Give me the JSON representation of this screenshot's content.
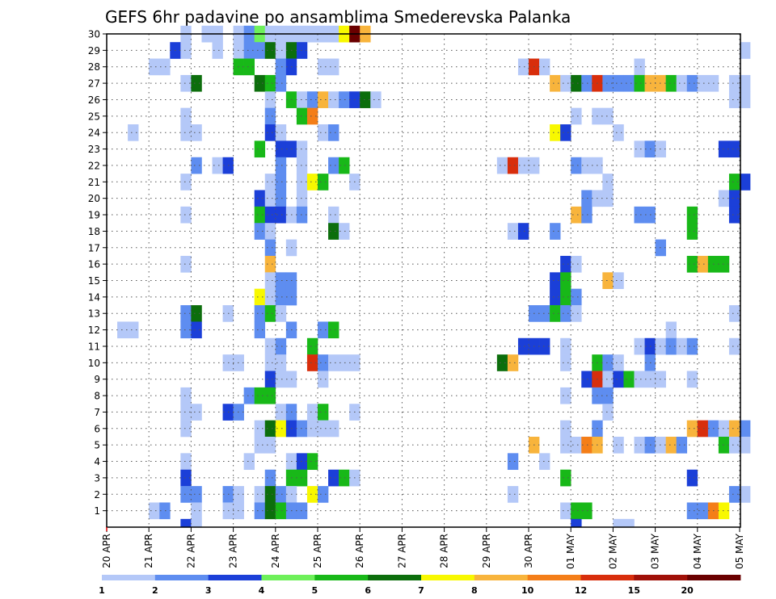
{
  "chart_data": {
    "type": "heatmap",
    "title": "GEFS 6hr padavine po ansamblima Smederevska Palanka",
    "xlabel": "",
    "ylabel": "",
    "x_ticks": [
      "20 APR",
      "21 APR",
      "22 APR",
      "23 APR",
      "24 APR",
      "25 APR",
      "26 APR",
      "27 APR",
      "28 APR",
      "29 APR",
      "30 APR",
      "01 MAY",
      "02 MAY",
      "03 MAY",
      "04 MAY",
      "05 MAY"
    ],
    "y_ticks": [
      "1",
      "2",
      "3",
      "4",
      "5",
      "6",
      "7",
      "8",
      "9",
      "10",
      "11",
      "12",
      "13",
      "14",
      "15",
      "16",
      "17",
      "18",
      "19",
      "20",
      "21",
      "22",
      "23",
      "24",
      "25",
      "26",
      "27",
      "28",
      "29",
      "30"
    ],
    "xlim": [
      "20 APR 00Z",
      "05 MAY 06Z"
    ],
    "ylim": [
      0,
      30
    ],
    "step_hours": 6,
    "grid": true,
    "legend": "bottom",
    "colorbar": {
      "labels": [
        "1",
        "2",
        "3",
        "4",
        "5",
        "6",
        "7",
        "8",
        "10",
        "12",
        "15",
        "20"
      ],
      "colors": [
        "#b4c8f8",
        "#5e8df0",
        "#1b3fd8",
        "#6ef05a",
        "#18b818",
        "#0c6e0c",
        "#f8f800",
        "#f8b43c",
        "#f47e18",
        "#d82e0c",
        "#a01008",
        "#6a0000"
      ]
    },
    "cells_note": "cells listed as [member, step_index, color_class]; step_index 0 = 20 APR 00Z, 6-hourly; color_class 0..11 indexes colorbar",
    "cells": [
      [
        30,
        7,
        0
      ],
      [
        30,
        9,
        0
      ],
      [
        30,
        10,
        0
      ],
      [
        30,
        12,
        0
      ],
      [
        30,
        13,
        1
      ],
      [
        30,
        14,
        3
      ],
      [
        30,
        15,
        0
      ],
      [
        30,
        16,
        0
      ],
      [
        30,
        17,
        0
      ],
      [
        30,
        18,
        0
      ],
      [
        30,
        19,
        0
      ],
      [
        30,
        20,
        0
      ],
      [
        30,
        21,
        0
      ],
      [
        30,
        22,
        6
      ],
      [
        30,
        23,
        11
      ],
      [
        30,
        24,
        7
      ],
      [
        29,
        6,
        2
      ],
      [
        29,
        7,
        0
      ],
      [
        29,
        10,
        0
      ],
      [
        29,
        12,
        0
      ],
      [
        29,
        13,
        1
      ],
      [
        29,
        14,
        1
      ],
      [
        29,
        15,
        5
      ],
      [
        29,
        16,
        0
      ],
      [
        29,
        17,
        5
      ],
      [
        29,
        18,
        2
      ],
      [
        29,
        60,
        0
      ],
      [
        28,
        4,
        0
      ],
      [
        28,
        5,
        0
      ],
      [
        28,
        12,
        4
      ],
      [
        28,
        13,
        4
      ],
      [
        28,
        16,
        1
      ],
      [
        28,
        17,
        2
      ],
      [
        28,
        20,
        0
      ],
      [
        28,
        21,
        0
      ],
      [
        28,
        39,
        0
      ],
      [
        28,
        40,
        9
      ],
      [
        28,
        41,
        0
      ],
      [
        28,
        50,
        0
      ],
      [
        27,
        7,
        0
      ],
      [
        27,
        8,
        5
      ],
      [
        27,
        14,
        5
      ],
      [
        27,
        15,
        4
      ],
      [
        27,
        16,
        1
      ],
      [
        27,
        42,
        7
      ],
      [
        27,
        43,
        0
      ],
      [
        27,
        44,
        5
      ],
      [
        27,
        45,
        1
      ],
      [
        27,
        46,
        9
      ],
      [
        27,
        47,
        1
      ],
      [
        27,
        48,
        1
      ],
      [
        27,
        49,
        1
      ],
      [
        27,
        50,
        4
      ],
      [
        27,
        51,
        7
      ],
      [
        27,
        52,
        7
      ],
      [
        27,
        53,
        4
      ],
      [
        27,
        54,
        0
      ],
      [
        27,
        55,
        1
      ],
      [
        27,
        56,
        0
      ],
      [
        27,
        57,
        0
      ],
      [
        27,
        59,
        0
      ],
      [
        27,
        60,
        0
      ],
      [
        26,
        15,
        0
      ],
      [
        26,
        17,
        4
      ],
      [
        26,
        18,
        0
      ],
      [
        26,
        19,
        1
      ],
      [
        26,
        20,
        7
      ],
      [
        26,
        21,
        0
      ],
      [
        26,
        22,
        1
      ],
      [
        26,
        23,
        2
      ],
      [
        26,
        24,
        5
      ],
      [
        26,
        25,
        0
      ],
      [
        26,
        59,
        0
      ],
      [
        26,
        60,
        0
      ],
      [
        25,
        7,
        0
      ],
      [
        25,
        15,
        1
      ],
      [
        25,
        18,
        4
      ],
      [
        25,
        19,
        8
      ],
      [
        25,
        44,
        0
      ],
      [
        25,
        46,
        0
      ],
      [
        25,
        47,
        0
      ],
      [
        24,
        2,
        0
      ],
      [
        24,
        7,
        0
      ],
      [
        24,
        8,
        0
      ],
      [
        24,
        15,
        2
      ],
      [
        24,
        16,
        0
      ],
      [
        24,
        20,
        0
      ],
      [
        24,
        21,
        1
      ],
      [
        24,
        42,
        6
      ],
      [
        24,
        43,
        2
      ],
      [
        24,
        48,
        0
      ],
      [
        23,
        14,
        4
      ],
      [
        23,
        16,
        2
      ],
      [
        23,
        17,
        2
      ],
      [
        23,
        18,
        0
      ],
      [
        23,
        50,
        0
      ],
      [
        23,
        51,
        1
      ],
      [
        23,
        52,
        0
      ],
      [
        23,
        58,
        2
      ],
      [
        23,
        59,
        2
      ],
      [
        22,
        8,
        1
      ],
      [
        22,
        10,
        0
      ],
      [
        22,
        11,
        2
      ],
      [
        22,
        16,
        1
      ],
      [
        22,
        18,
        0
      ],
      [
        22,
        21,
        1
      ],
      [
        22,
        22,
        4
      ],
      [
        22,
        37,
        0
      ],
      [
        22,
        38,
        9
      ],
      [
        22,
        39,
        0
      ],
      [
        22,
        40,
        0
      ],
      [
        22,
        44,
        1
      ],
      [
        22,
        45,
        0
      ],
      [
        22,
        46,
        0
      ],
      [
        21,
        7,
        0
      ],
      [
        21,
        15,
        0
      ],
      [
        21,
        16,
        1
      ],
      [
        21,
        18,
        0
      ],
      [
        21,
        19,
        6
      ],
      [
        21,
        20,
        4
      ],
      [
        21,
        23,
        0
      ],
      [
        21,
        47,
        0
      ],
      [
        21,
        59,
        4
      ],
      [
        21,
        60,
        2
      ],
      [
        20,
        14,
        2
      ],
      [
        20,
        15,
        0
      ],
      [
        20,
        16,
        1
      ],
      [
        20,
        18,
        0
      ],
      [
        20,
        45,
        1
      ],
      [
        20,
        46,
        0
      ],
      [
        20,
        47,
        0
      ],
      [
        20,
        58,
        0
      ],
      [
        20,
        59,
        2
      ],
      [
        19,
        7,
        0
      ],
      [
        19,
        14,
        4
      ],
      [
        19,
        15,
        2
      ],
      [
        19,
        16,
        2
      ],
      [
        19,
        17,
        0
      ],
      [
        19,
        18,
        1
      ],
      [
        19,
        21,
        0
      ],
      [
        19,
        44,
        7
      ],
      [
        19,
        45,
        1
      ],
      [
        19,
        50,
        1
      ],
      [
        19,
        51,
        1
      ],
      [
        19,
        55,
        4
      ],
      [
        19,
        59,
        2
      ],
      [
        18,
        14,
        1
      ],
      [
        18,
        15,
        0
      ],
      [
        18,
        21,
        5
      ],
      [
        18,
        22,
        0
      ],
      [
        18,
        38,
        0
      ],
      [
        18,
        39,
        2
      ],
      [
        18,
        42,
        1
      ],
      [
        18,
        55,
        4
      ],
      [
        17,
        15,
        1
      ],
      [
        17,
        17,
        0
      ],
      [
        17,
        52,
        1
      ],
      [
        16,
        7,
        0
      ],
      [
        16,
        15,
        7
      ],
      [
        16,
        43,
        2
      ],
      [
        16,
        44,
        0
      ],
      [
        16,
        55,
        4
      ],
      [
        16,
        56,
        7
      ],
      [
        16,
        57,
        4
      ],
      [
        16,
        58,
        4
      ],
      [
        15,
        15,
        0
      ],
      [
        15,
        16,
        1
      ],
      [
        15,
        17,
        1
      ],
      [
        15,
        42,
        2
      ],
      [
        15,
        43,
        4
      ],
      [
        15,
        47,
        7
      ],
      [
        15,
        48,
        0
      ],
      [
        14,
        14,
        6
      ],
      [
        14,
        15,
        0
      ],
      [
        14,
        16,
        1
      ],
      [
        14,
        17,
        1
      ],
      [
        14,
        42,
        2
      ],
      [
        14,
        43,
        4
      ],
      [
        14,
        44,
        1
      ],
      [
        13,
        7,
        1
      ],
      [
        13,
        8,
        5
      ],
      [
        13,
        11,
        0
      ],
      [
        13,
        14,
        1
      ],
      [
        13,
        15,
        4
      ],
      [
        13,
        16,
        0
      ],
      [
        13,
        40,
        1
      ],
      [
        13,
        41,
        1
      ],
      [
        13,
        42,
        4
      ],
      [
        13,
        43,
        1
      ],
      [
        13,
        44,
        0
      ],
      [
        13,
        59,
        0
      ],
      [
        12,
        1,
        0
      ],
      [
        12,
        2,
        0
      ],
      [
        12,
        7,
        1
      ],
      [
        12,
        8,
        2
      ],
      [
        12,
        14,
        1
      ],
      [
        12,
        17,
        1
      ],
      [
        12,
        20,
        1
      ],
      [
        12,
        21,
        4
      ],
      [
        12,
        53,
        0
      ],
      [
        11,
        15,
        0
      ],
      [
        11,
        16,
        1
      ],
      [
        11,
        19,
        4
      ],
      [
        11,
        39,
        2
      ],
      [
        11,
        40,
        2
      ],
      [
        11,
        41,
        2
      ],
      [
        11,
        43,
        0
      ],
      [
        11,
        50,
        0
      ],
      [
        11,
        51,
        2
      ],
      [
        11,
        52,
        0
      ],
      [
        11,
        53,
        1
      ],
      [
        11,
        54,
        0
      ],
      [
        11,
        55,
        1
      ],
      [
        11,
        59,
        0
      ],
      [
        10,
        11,
        0
      ],
      [
        10,
        12,
        0
      ],
      [
        10,
        15,
        0
      ],
      [
        10,
        16,
        0
      ],
      [
        10,
        19,
        9
      ],
      [
        10,
        20,
        1
      ],
      [
        10,
        21,
        0
      ],
      [
        10,
        22,
        0
      ],
      [
        10,
        23,
        0
      ],
      [
        10,
        37,
        5
      ],
      [
        10,
        38,
        7
      ],
      [
        10,
        43,
        0
      ],
      [
        10,
        46,
        4
      ],
      [
        10,
        47,
        1
      ],
      [
        10,
        48,
        0
      ],
      [
        10,
        51,
        1
      ],
      [
        9,
        15,
        2
      ],
      [
        9,
        16,
        0
      ],
      [
        9,
        17,
        0
      ],
      [
        9,
        20,
        0
      ],
      [
        9,
        45,
        2
      ],
      [
        9,
        46,
        9
      ],
      [
        9,
        47,
        0
      ],
      [
        9,
        48,
        2
      ],
      [
        9,
        49,
        4
      ],
      [
        9,
        50,
        0
      ],
      [
        9,
        51,
        0
      ],
      [
        9,
        52,
        0
      ],
      [
        9,
        55,
        0
      ],
      [
        8,
        7,
        0
      ],
      [
        8,
        13,
        1
      ],
      [
        8,
        14,
        4
      ],
      [
        8,
        15,
        4
      ],
      [
        8,
        43,
        0
      ],
      [
        8,
        46,
        1
      ],
      [
        8,
        47,
        1
      ],
      [
        7,
        7,
        0
      ],
      [
        7,
        8,
        0
      ],
      [
        7,
        11,
        2
      ],
      [
        7,
        12,
        1
      ],
      [
        7,
        16,
        0
      ],
      [
        7,
        17,
        1
      ],
      [
        7,
        19,
        0
      ],
      [
        7,
        20,
        4
      ],
      [
        7,
        23,
        0
      ],
      [
        7,
        47,
        0
      ],
      [
        6,
        7,
        0
      ],
      [
        6,
        14,
        0
      ],
      [
        6,
        15,
        5
      ],
      [
        6,
        16,
        6
      ],
      [
        6,
        17,
        2
      ],
      [
        6,
        18,
        1
      ],
      [
        6,
        19,
        0
      ],
      [
        6,
        20,
        0
      ],
      [
        6,
        21,
        0
      ],
      [
        6,
        43,
        0
      ],
      [
        6,
        46,
        1
      ],
      [
        6,
        55,
        7
      ],
      [
        6,
        56,
        9
      ],
      [
        6,
        57,
        1
      ],
      [
        6,
        58,
        0
      ],
      [
        6,
        59,
        7
      ],
      [
        6,
        60,
        1
      ],
      [
        5,
        14,
        0
      ],
      [
        5,
        15,
        0
      ],
      [
        5,
        40,
        7
      ],
      [
        5,
        43,
        0
      ],
      [
        5,
        44,
        0
      ],
      [
        5,
        45,
        8
      ],
      [
        5,
        46,
        7
      ],
      [
        5,
        48,
        0
      ],
      [
        5,
        50,
        0
      ],
      [
        5,
        51,
        1
      ],
      [
        5,
        52,
        0
      ],
      [
        5,
        53,
        7
      ],
      [
        5,
        54,
        1
      ],
      [
        5,
        58,
        4
      ],
      [
        5,
        59,
        0
      ],
      [
        5,
        60,
        0
      ],
      [
        4,
        7,
        0
      ],
      [
        4,
        13,
        0
      ],
      [
        4,
        17,
        0
      ],
      [
        4,
        18,
        2
      ],
      [
        4,
        19,
        4
      ],
      [
        4,
        38,
        1
      ],
      [
        4,
        41,
        0
      ],
      [
        3,
        7,
        2
      ],
      [
        3,
        15,
        1
      ],
      [
        3,
        17,
        4
      ],
      [
        3,
        18,
        4
      ],
      [
        3,
        21,
        2
      ],
      [
        3,
        22,
        4
      ],
      [
        3,
        23,
        0
      ],
      [
        3,
        43,
        4
      ],
      [
        3,
        55,
        2
      ],
      [
        2,
        7,
        1
      ],
      [
        2,
        8,
        1
      ],
      [
        2,
        11,
        1
      ],
      [
        2,
        12,
        0
      ],
      [
        2,
        14,
        0
      ],
      [
        2,
        15,
        5
      ],
      [
        2,
        16,
        1
      ],
      [
        2,
        17,
        0
      ],
      [
        2,
        19,
        6
      ],
      [
        2,
        20,
        1
      ],
      [
        2,
        38,
        0
      ],
      [
        2,
        59,
        1
      ],
      [
        2,
        60,
        0
      ],
      [
        1,
        4,
        0
      ],
      [
        1,
        5,
        1
      ],
      [
        1,
        8,
        0
      ],
      [
        1,
        11,
        0
      ],
      [
        1,
        12,
        0
      ],
      [
        1,
        14,
        1
      ],
      [
        1,
        15,
        5
      ],
      [
        1,
        16,
        4
      ],
      [
        1,
        17,
        1
      ],
      [
        1,
        18,
        1
      ],
      [
        1,
        43,
        0
      ],
      [
        1,
        44,
        4
      ],
      [
        1,
        45,
        4
      ],
      [
        1,
        55,
        1
      ],
      [
        1,
        56,
        1
      ],
      [
        1,
        57,
        8
      ],
      [
        1,
        58,
        6
      ],
      [
        0,
        7,
        2
      ],
      [
        0,
        8,
        0
      ],
      [
        0,
        44,
        2
      ],
      [
        0,
        48,
        0
      ],
      [
        0,
        49,
        0
      ]
    ]
  }
}
